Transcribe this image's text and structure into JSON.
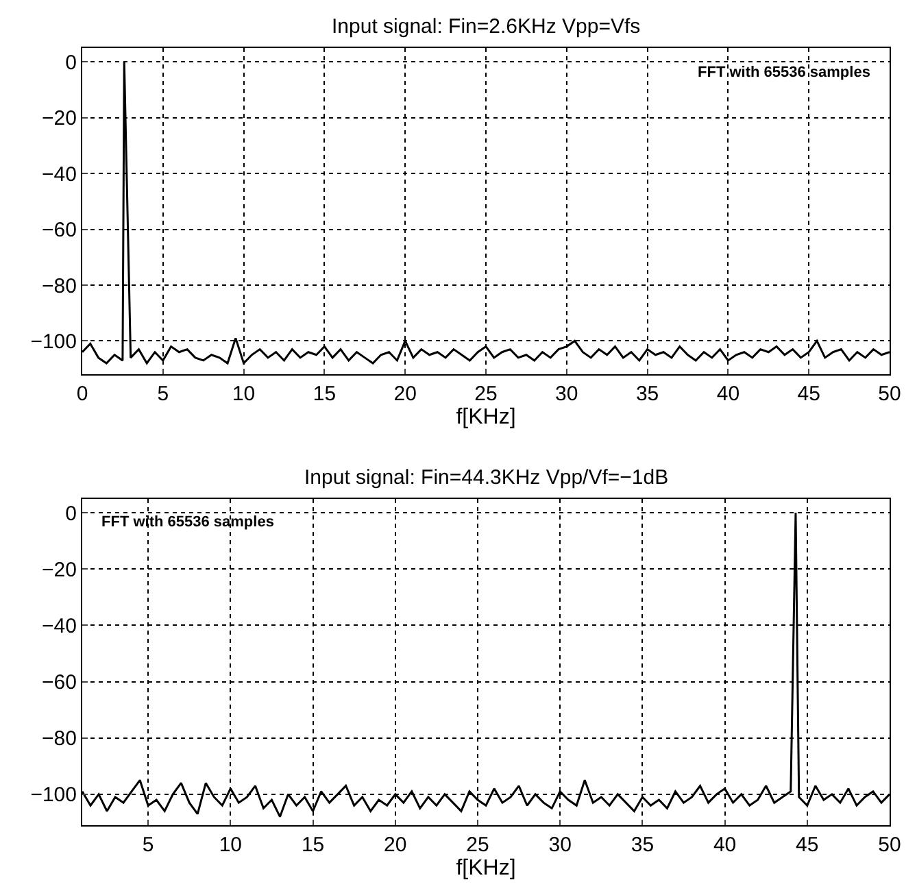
{
  "chart_data": [
    {
      "type": "line",
      "title": "Input signal: Fin=2.6KHz Vpp=Vfs",
      "xlabel": "f[KHz]",
      "annotations": [
        "FFT with 65536 samples"
      ],
      "xlim": [
        0,
        50
      ],
      "xticks": [
        0,
        5,
        10,
        15,
        20,
        25,
        30,
        35,
        40,
        45,
        50
      ],
      "ylim": [
        -112,
        5
      ],
      "yticks": [
        -100,
        -80,
        -60,
        -40,
        -20,
        0
      ],
      "grid": true,
      "line_style": "solid",
      "marker": "none",
      "x": [
        0,
        0.5,
        1,
        1.5,
        2,
        2.5,
        2.6,
        3,
        3.5,
        4,
        4.5,
        5,
        5.5,
        6,
        6.5,
        7,
        7.5,
        8,
        8.5,
        9,
        9.5,
        10,
        10.5,
        11,
        11.5,
        12,
        12.5,
        13,
        13.5,
        14,
        14.5,
        15,
        15.5,
        16,
        16.5,
        17,
        17.5,
        18,
        18.5,
        19,
        19.5,
        20,
        20.5,
        21,
        21.5,
        22,
        22.5,
        23,
        23.5,
        24,
        24.5,
        25,
        25.5,
        26,
        26.5,
        27,
        27.5,
        28,
        28.5,
        29,
        29.5,
        30,
        30.5,
        31,
        31.5,
        32,
        32.5,
        33,
        33.5,
        34,
        34.5,
        35,
        35.5,
        36,
        36.5,
        37,
        37.5,
        38,
        38.5,
        39,
        39.5,
        40,
        40.5,
        41,
        41.5,
        42,
        42.5,
        43,
        43.5,
        44,
        44.5,
        45,
        45.5,
        46,
        46.5,
        47,
        47.5,
        48,
        48.5,
        49,
        49.5,
        50
      ],
      "series": [
        {
          "color": "#000000",
          "values": [
            -104,
            -101,
            -106,
            -108,
            -105,
            -107,
            0,
            -106,
            -103,
            -108,
            -104,
            -107,
            -102,
            -104,
            -103,
            -106,
            -107,
            -105,
            -106,
            -108,
            -99,
            -108,
            -105,
            -103,
            -106,
            -104,
            -107,
            -103,
            -106,
            -104,
            -105,
            -102,
            -106,
            -103,
            -107,
            -104,
            -106,
            -108,
            -105,
            -104,
            -107,
            -100,
            -106,
            -103,
            -105,
            -104,
            -106,
            -103,
            -105,
            -107,
            -104,
            -102,
            -106,
            -104,
            -103,
            -106,
            -105,
            -107,
            -104,
            -106,
            -103,
            -102,
            -100,
            -104,
            -106,
            -103,
            -105,
            -102,
            -106,
            -104,
            -107,
            -103,
            -105,
            -104,
            -106,
            -102,
            -105,
            -107,
            -104,
            -106,
            -103,
            -107,
            -105,
            -104,
            -106,
            -103,
            -104,
            -102,
            -105,
            -103,
            -106,
            -104,
            -100,
            -106,
            -104,
            -103,
            -107,
            -104,
            -106,
            -103,
            -105,
            -104
          ]
        }
      ]
    },
    {
      "type": "line",
      "title": "Input signal: Fin=44.3KHz Vpp/Vf=−1dB",
      "xlabel": "f[KHz]",
      "annotations": [
        "FFT with 65536 samples"
      ],
      "xlim": [
        1,
        50
      ],
      "xticks": [
        5,
        10,
        15,
        20,
        25,
        30,
        35,
        40,
        45,
        50
      ],
      "ylim": [
        -111,
        5
      ],
      "yticks": [
        -100,
        -80,
        -60,
        -40,
        -20,
        0
      ],
      "grid": true,
      "line_style": "solid",
      "marker": "none",
      "x": [
        1,
        1.5,
        2,
        2.5,
        3,
        3.5,
        4,
        4.5,
        5,
        5.5,
        6,
        6.5,
        7,
        7.5,
        8,
        8.5,
        9,
        9.5,
        10,
        10.5,
        11,
        11.5,
        12,
        12.5,
        13,
        13.5,
        14,
        14.5,
        15,
        15.5,
        16,
        16.5,
        17,
        17.5,
        18,
        18.5,
        19,
        19.5,
        20,
        20.5,
        21,
        21.5,
        22,
        22.5,
        23,
        23.5,
        24,
        24.5,
        25,
        25.5,
        26,
        26.5,
        27,
        27.5,
        28,
        28.5,
        29,
        29.5,
        30,
        30.5,
        31,
        31.5,
        32,
        32.5,
        33,
        33.5,
        34,
        34.5,
        35,
        35.5,
        36,
        36.5,
        37,
        37.5,
        38,
        38.5,
        39,
        39.5,
        40,
        40.5,
        41,
        41.5,
        42,
        42.5,
        43,
        43.5,
        44,
        44.3,
        44.5,
        45,
        45.5,
        46,
        46.5,
        47,
        47.5,
        48,
        48.5,
        49,
        49.5,
        50
      ],
      "series": [
        {
          "color": "#000000",
          "values": [
            -99,
            -104,
            -100,
            -106,
            -101,
            -103,
            -99,
            -95,
            -104,
            -102,
            -106,
            -100,
            -96,
            -103,
            -107,
            -96,
            -101,
            -104,
            -98,
            -103,
            -101,
            -97,
            -105,
            -102,
            -108,
            -100,
            -104,
            -101,
            -106,
            -99,
            -103,
            -100,
            -97,
            -104,
            -101,
            -106,
            -102,
            -104,
            -100,
            -103,
            -99,
            -105,
            -101,
            -104,
            -100,
            -103,
            -106,
            -99,
            -102,
            -104,
            -98,
            -103,
            -101,
            -97,
            -104,
            -100,
            -103,
            -105,
            -99,
            -102,
            -104,
            -95,
            -103,
            -101,
            -104,
            -100,
            -103,
            -106,
            -101,
            -104,
            -102,
            -105,
            -99,
            -103,
            -101,
            -97,
            -103,
            -100,
            -98,
            -103,
            -100,
            -104,
            -102,
            -97,
            -103,
            -101,
            -99,
            0,
            -101,
            -104,
            -97,
            -102,
            -100,
            -103,
            -98,
            -104,
            -101,
            -99,
            -103,
            -100
          ]
        }
      ]
    }
  ]
}
